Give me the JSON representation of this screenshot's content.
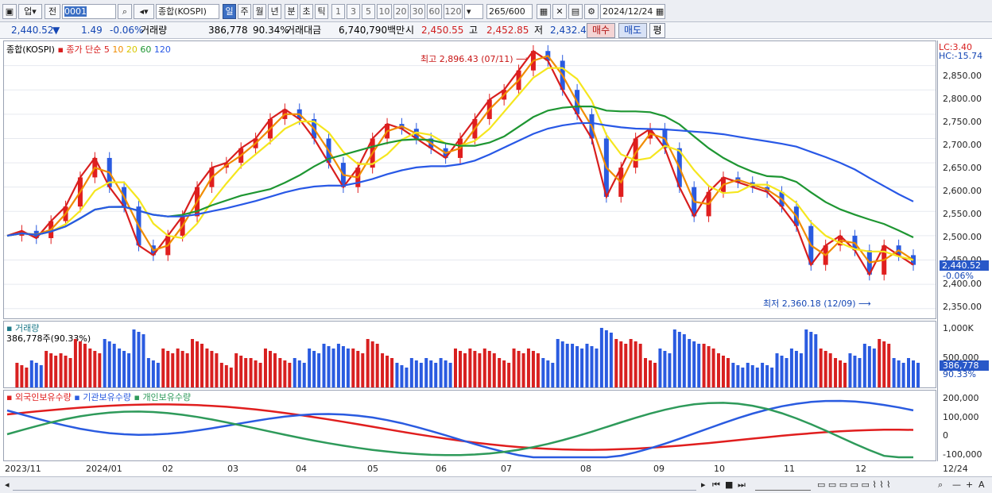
{
  "toolbar": {
    "market_label": "업",
    "prev_label": "전",
    "code": "0001",
    "index_name": "종합(KOSPI)",
    "periods": [
      "일",
      "주",
      "월",
      "년",
      "분",
      "초",
      "틱"
    ],
    "selected_period": "일",
    "intervals": [
      "1",
      "3",
      "5",
      "10",
      "20",
      "30",
      "60",
      "120"
    ],
    "count": "265",
    "count_total": "/600",
    "date": "2024/12/24"
  },
  "quote": {
    "price": "2,440.52",
    "arrow": "▼",
    "change": "1.49",
    "change_pct": "-0.06%",
    "volume_label": "거래량",
    "volume": "386,778",
    "volume_ratio": "90.34%",
    "amount_label": "거래대금",
    "amount": "6,740,790백만",
    "open_label": "시",
    "open": "2,450.55",
    "high_label": "고",
    "high": "2,452.85",
    "low_label": "저",
    "low": "2,432.4",
    "buy_label": "매수",
    "sell_label": "매도",
    "eval_label": "평"
  },
  "price_panel": {
    "title": "종합(KOSPI)",
    "ma_label": "종가 단순",
    "ma_periods": [
      "5",
      "10",
      "20",
      "60",
      "120"
    ],
    "ma_colors": [
      "#d81e1e",
      "#f08c00",
      "#f5e61e",
      "#1e9632",
      "#2858e6"
    ],
    "lc": "LC:3.40",
    "hc": "HC:-15.74",
    "high_annotation": "최고 2,896.43 (07/11)",
    "low_annotation": "최저 2,360.18 (12/09)",
    "current_price": "2,440.52",
    "current_change": "-0.06%",
    "yticks": [
      "2,850.00",
      "2,800.00",
      "2,750.00",
      "2,700.00",
      "2,650.00",
      "2,600.00",
      "2,550.00",
      "2,500.00",
      "2,450.00",
      "2,400.00",
      "2,350.00"
    ]
  },
  "volume_panel": {
    "title": "거래량",
    "value_text": "386,778주(90.33%)",
    "yticks": [
      "1,000K",
      "500,000"
    ],
    "current": "386,778",
    "current_pct": "90.33%"
  },
  "holding_panel": {
    "series": [
      "외국인보유수량",
      "기관보유수량",
      "개인보유수량"
    ],
    "colors": [
      "#e01e1e",
      "#2a5be0",
      "#2e9a5a"
    ],
    "yticks": [
      "200,000",
      "100,000",
      "0",
      "-100,000"
    ]
  },
  "x_labels": [
    "2023/11",
    "2024/01",
    "02",
    "03",
    "04",
    "05",
    "06",
    "07",
    "08",
    "09",
    "10",
    "11",
    "12",
    "12/24"
  ],
  "chart_data": {
    "type": "line",
    "title": "종합(KOSPI)",
    "series": [
      {
        "name": "종가",
        "values": [
          2500,
          2510,
          2495,
          2530,
          2560,
          2620,
          2660,
          2600,
          2560,
          2480,
          2460,
          2500,
          2540,
          2600,
          2640,
          2650,
          2680,
          2700,
          2740,
          2760,
          2740,
          2700,
          2650,
          2600,
          2640,
          2700,
          2730,
          2720,
          2700,
          2680,
          2660,
          2700,
          2740,
          2780,
          2800,
          2840,
          2880,
          2860,
          2800,
          2750,
          2700,
          2580,
          2640,
          2700,
          2720,
          2680,
          2600,
          2540,
          2590,
          2620,
          2610,
          2600,
          2590,
          2560,
          2520,
          2440,
          2480,
          2500,
          2470,
          2420,
          2480,
          2460,
          2440
        ]
      }
    ],
    "y_range": [
      2330,
      2900
    ],
    "high": 2896.43,
    "low": 2360.18
  }
}
